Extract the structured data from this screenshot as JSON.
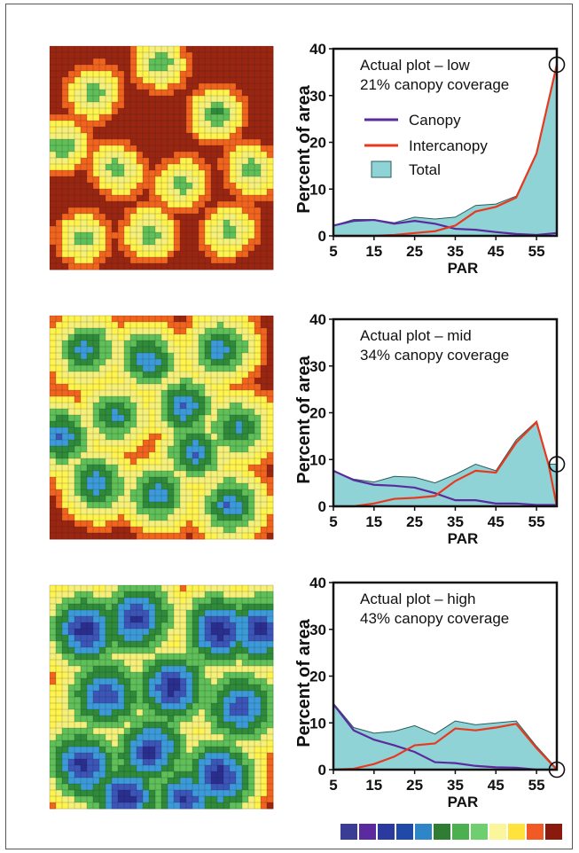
{
  "figure": {
    "colors": {
      "canopy": "#5b2a9e",
      "intercanopy": "#e8391f",
      "total_fill": "#8fd3d6",
      "total_edge": "#2b5c5c",
      "frame": "#111111"
    },
    "legend": {
      "canopy": "Canopy",
      "intercanopy": "Intercanopy",
      "total": "Total"
    },
    "colorbar": [
      "#3b3c93",
      "#5b2a9e",
      "#2a3a9e",
      "#1f4aa8",
      "#2e86c9",
      "#2e7d32",
      "#4caf50",
      "#6fcf6f",
      "#fbf59b",
      "#ffe23b",
      "#f15a24",
      "#8b1a0e"
    ],
    "heatmap_palette": [
      "#2a2f8f",
      "#3b55b8",
      "#3c9ad8",
      "#2f8a3a",
      "#5fbf58",
      "#f5f07a",
      "#fff34d",
      "#f0641e",
      "#9a2612"
    ]
  },
  "chart_data": [
    {
      "type": "area",
      "title": "Actual plot – low",
      "subtitle": "21% canopy coverage",
      "xlabel": "PAR",
      "ylabel": "Percent of area",
      "xlim": [
        5,
        60
      ],
      "ylim": [
        0,
        40
      ],
      "xticks": [
        5,
        15,
        25,
        35,
        45,
        55
      ],
      "yticks": [
        0,
        10,
        20,
        30,
        40
      ],
      "x": [
        5,
        10,
        15,
        20,
        25,
        30,
        35,
        40,
        45,
        50,
        55,
        60
      ],
      "series": [
        {
          "name": "Total",
          "values": [
            2.2,
            3.5,
            3.5,
            2.8,
            4.0,
            3.6,
            4.0,
            6.5,
            6.8,
            8.5,
            17.8,
            37.0
          ]
        },
        {
          "name": "Canopy",
          "values": [
            2.2,
            3.2,
            3.4,
            2.6,
            3.2,
            2.6,
            1.5,
            1.3,
            0.8,
            0.4,
            0.2,
            0.6
          ]
        },
        {
          "name": "Intercanopy",
          "values": [
            0.0,
            0.0,
            0.0,
            0.2,
            0.6,
            1.0,
            2.2,
            5.2,
            6.2,
            8.2,
            17.6,
            36.6
          ]
        }
      ],
      "marker_circle_x": 60,
      "grid": false,
      "legend_position": "inside-left"
    },
    {
      "type": "area",
      "title": "Actual plot – mid",
      "subtitle": "34% canopy coverage",
      "xlabel": "PAR",
      "ylabel": "Percent of area",
      "xlim": [
        5,
        60
      ],
      "ylim": [
        0,
        40
      ],
      "xticks": [
        5,
        15,
        25,
        35,
        45,
        55
      ],
      "yticks": [
        0,
        10,
        20,
        30,
        40
      ],
      "x": [
        5,
        10,
        15,
        20,
        25,
        30,
        35,
        40,
        45,
        50,
        55,
        58,
        60
      ],
      "series": [
        {
          "name": "Total",
          "values": [
            7.6,
            5.8,
            5.2,
            6.4,
            6.2,
            5.0,
            6.8,
            9.0,
            7.6,
            14.2,
            18.2,
            9.0,
            9.0
          ]
        },
        {
          "name": "Canopy",
          "values": [
            7.6,
            5.6,
            4.6,
            4.4,
            4.0,
            2.8,
            1.3,
            1.3,
            0.6,
            0.6,
            0.3,
            0.3,
            0.3
          ]
        },
        {
          "name": "Intercanopy",
          "values": [
            0.0,
            0.0,
            0.6,
            1.6,
            1.8,
            2.2,
            5.4,
            7.6,
            7.2,
            13.6,
            18.0,
            8.8,
            0.0
          ]
        }
      ],
      "marker_circle_x": 60,
      "grid": false
    },
    {
      "type": "area",
      "title": "Actual plot – high",
      "subtitle": "43% canopy coverage",
      "xlabel": "PAR",
      "ylabel": "Percent of area",
      "xlim": [
        5,
        60
      ],
      "ylim": [
        0,
        40
      ],
      "xticks": [
        5,
        15,
        25,
        35,
        45,
        55
      ],
      "yticks": [
        0,
        10,
        20,
        30,
        40
      ],
      "x": [
        5,
        10,
        15,
        20,
        25,
        30,
        35,
        40,
        45,
        50,
        55,
        60
      ],
      "series": [
        {
          "name": "Total",
          "values": [
            14.2,
            9.0,
            7.8,
            8.2,
            9.4,
            7.6,
            10.4,
            9.6,
            10.0,
            10.4,
            5.0,
            0.2
          ]
        },
        {
          "name": "Canopy",
          "values": [
            14.0,
            8.4,
            6.4,
            5.2,
            3.8,
            1.6,
            1.4,
            0.8,
            0.5,
            0.4,
            0.0,
            0.0
          ]
        },
        {
          "name": "Intercanopy",
          "values": [
            0.0,
            0.2,
            1.2,
            2.8,
            5.2,
            5.6,
            8.8,
            8.4,
            9.0,
            9.8,
            4.6,
            0.0
          ]
        }
      ],
      "marker_circle_x": 60,
      "grid": false
    }
  ]
}
